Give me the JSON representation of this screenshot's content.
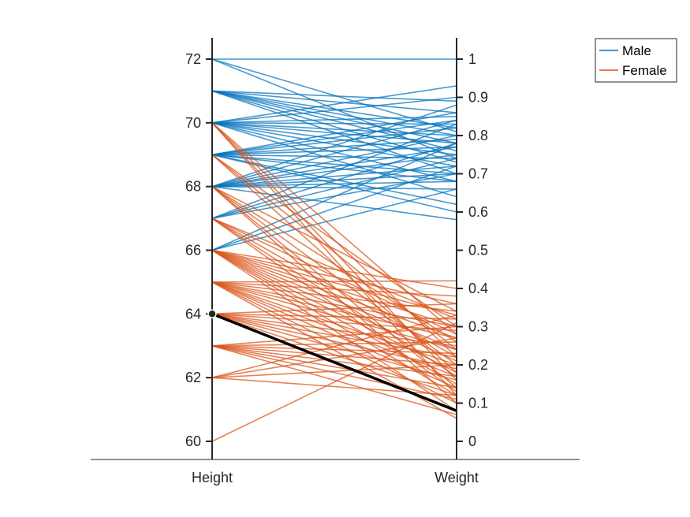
{
  "chart_data": {
    "type": "parallel_coordinates",
    "coordinates": [
      "Height",
      "Weight"
    ],
    "height_ticks": [
      "60",
      "62",
      "64",
      "66",
      "68",
      "70",
      "72"
    ],
    "height_range": [
      59.4,
      72.7
    ],
    "weight_ticks": [
      "0",
      "0.1",
      "0.2",
      "0.3",
      "0.4",
      "0.5",
      "0.6",
      "0.7",
      "0.8",
      "0.9",
      "1"
    ],
    "weight_range": [
      -0.05,
      1.05
    ],
    "legend": {
      "placement": "top-right outside"
    },
    "series": [
      {
        "name": "Male",
        "color": "#0072BD",
        "lines": [
          [
            72,
            1.0
          ],
          [
            72,
            0.81
          ],
          [
            72,
            0.74
          ],
          [
            71,
            0.89
          ],
          [
            71,
            0.86
          ],
          [
            71,
            0.82
          ],
          [
            71,
            0.8
          ],
          [
            71,
            0.78
          ],
          [
            71,
            0.76
          ],
          [
            71,
            0.73
          ],
          [
            71,
            0.7
          ],
          [
            70,
            0.93
          ],
          [
            70,
            0.9
          ],
          [
            70,
            0.85
          ],
          [
            70,
            0.83
          ],
          [
            70,
            0.8
          ],
          [
            70,
            0.78
          ],
          [
            70,
            0.75
          ],
          [
            70,
            0.72
          ],
          [
            70,
            0.68
          ],
          [
            70,
            0.64
          ],
          [
            69,
            0.86
          ],
          [
            69,
            0.84
          ],
          [
            69,
            0.82
          ],
          [
            69,
            0.79
          ],
          [
            69,
            0.77
          ],
          [
            69,
            0.74
          ],
          [
            69,
            0.7
          ],
          [
            69,
            0.68
          ],
          [
            69,
            0.62
          ],
          [
            69,
            0.6
          ],
          [
            68,
            0.88
          ],
          [
            68,
            0.84
          ],
          [
            68,
            0.8
          ],
          [
            68,
            0.77
          ],
          [
            68,
            0.75
          ],
          [
            68,
            0.72
          ],
          [
            68,
            0.7
          ],
          [
            68,
            0.68
          ],
          [
            68,
            0.66
          ],
          [
            68,
            0.58
          ],
          [
            67,
            0.83
          ],
          [
            67,
            0.78
          ],
          [
            67,
            0.74
          ],
          [
            67,
            0.7
          ],
          [
            66,
            0.78
          ],
          [
            66,
            0.72
          ],
          [
            66,
            0.66
          ]
        ]
      },
      {
        "name": "Female",
        "color": "#D95319",
        "lines": [
          [
            70,
            0.28
          ],
          [
            70,
            0.22
          ],
          [
            70,
            0.16
          ],
          [
            70,
            0.12
          ],
          [
            69,
            0.3
          ],
          [
            69,
            0.24
          ],
          [
            69,
            0.18
          ],
          [
            68,
            0.34
          ],
          [
            68,
            0.26
          ],
          [
            68,
            0.2
          ],
          [
            68,
            0.14
          ],
          [
            68,
            0.1
          ],
          [
            67,
            0.32
          ],
          [
            67,
            0.28
          ],
          [
            67,
            0.22
          ],
          [
            67,
            0.17
          ],
          [
            67,
            0.13
          ],
          [
            66,
            0.4
          ],
          [
            66,
            0.36
          ],
          [
            66,
            0.33
          ],
          [
            66,
            0.3
          ],
          [
            66,
            0.27
          ],
          [
            66,
            0.24
          ],
          [
            66,
            0.21
          ],
          [
            66,
            0.18
          ],
          [
            66,
            0.15
          ],
          [
            66,
            0.12
          ],
          [
            66,
            0.08
          ],
          [
            65,
            0.42
          ],
          [
            65,
            0.38
          ],
          [
            65,
            0.34
          ],
          [
            65,
            0.3
          ],
          [
            65,
            0.27
          ],
          [
            65,
            0.24
          ],
          [
            65,
            0.2
          ],
          [
            65,
            0.17
          ],
          [
            65,
            0.14
          ],
          [
            65,
            0.1
          ],
          [
            65,
            0.06
          ],
          [
            64,
            0.36
          ],
          [
            64,
            0.32
          ],
          [
            64,
            0.29
          ],
          [
            64,
            0.25
          ],
          [
            64,
            0.22
          ],
          [
            64,
            0.19
          ],
          [
            64,
            0.16
          ],
          [
            64,
            0.12
          ],
          [
            63,
            0.3
          ],
          [
            63,
            0.26
          ],
          [
            63,
            0.23
          ],
          [
            63,
            0.2
          ],
          [
            63,
            0.17
          ],
          [
            63,
            0.14
          ],
          [
            63,
            0.11
          ],
          [
            63,
            0.07
          ],
          [
            62,
            0.33
          ],
          [
            62,
            0.27
          ],
          [
            62,
            0.2
          ],
          [
            62,
            0.12
          ],
          [
            60,
            0.31
          ]
        ]
      }
    ],
    "highlighted": {
      "color": "#000000",
      "values": [
        64,
        0.08
      ]
    }
  }
}
